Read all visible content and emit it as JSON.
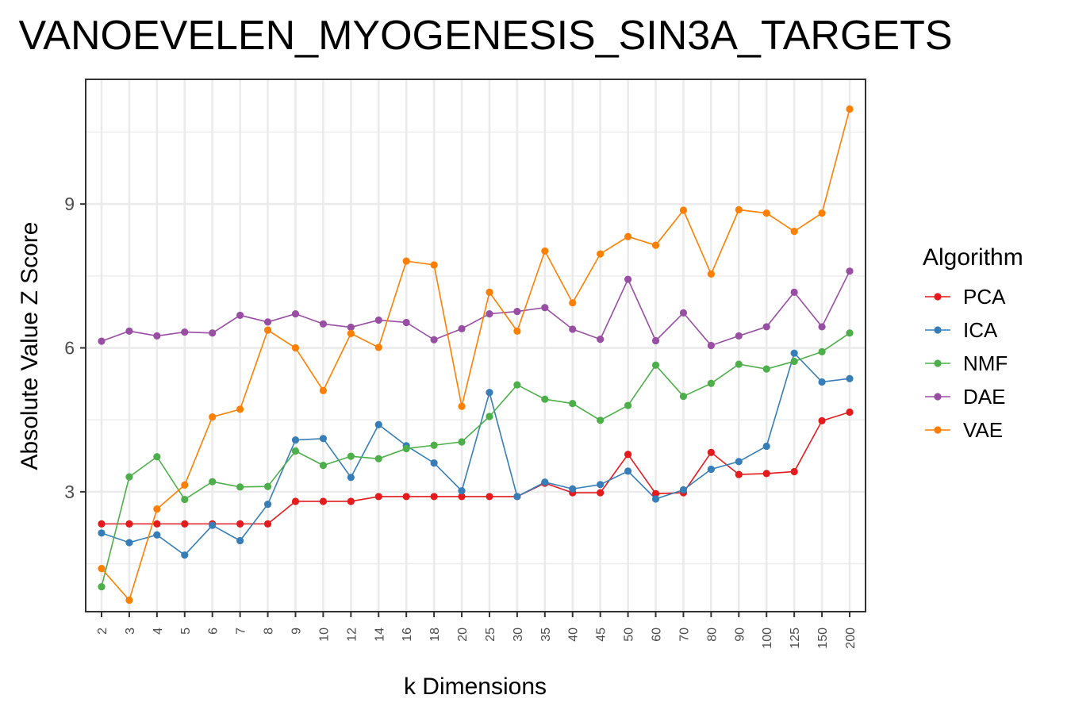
{
  "chart_data": {
    "type": "line",
    "title": "VANOEVELEN_MYOGENESIS_SIN3A_TARGETS",
    "xlabel": "k Dimensions",
    "ylabel": "Absolute Value Z Score",
    "categories": [
      "2",
      "3",
      "4",
      "5",
      "6",
      "7",
      "8",
      "9",
      "10",
      "12",
      "14",
      "16",
      "18",
      "20",
      "25",
      "30",
      "35",
      "40",
      "45",
      "50",
      "60",
      "70",
      "80",
      "90",
      "100",
      "125",
      "150",
      "200"
    ],
    "yticks": [
      3,
      6,
      9
    ],
    "ylim": [
      0.5,
      11.6
    ],
    "grid": true,
    "legend": {
      "title": "Algorithm",
      "position": "right"
    },
    "series": [
      {
        "name": "PCA",
        "color": "#e41a1c",
        "values": [
          2.33,
          2.33,
          2.33,
          2.33,
          2.33,
          2.33,
          2.33,
          2.8,
          2.8,
          2.8,
          2.9,
          2.9,
          2.9,
          2.9,
          2.9,
          2.9,
          3.18,
          2.98,
          2.98,
          3.78,
          2.96,
          2.98,
          3.82,
          3.36,
          3.38,
          3.42,
          4.48,
          4.66
        ]
      },
      {
        "name": "ICA",
        "color": "#377eb8",
        "values": [
          2.14,
          1.94,
          2.1,
          1.68,
          2.3,
          1.98,
          2.74,
          4.08,
          4.11,
          3.3,
          4.4,
          3.96,
          3.6,
          3.02,
          5.07,
          2.9,
          3.2,
          3.06,
          3.15,
          3.43,
          2.85,
          3.04,
          3.47,
          3.63,
          3.95,
          5.89,
          5.29,
          5.36
        ]
      },
      {
        "name": "NMF",
        "color": "#4daf4a",
        "values": [
          1.02,
          3.31,
          3.73,
          2.84,
          3.21,
          3.1,
          3.11,
          3.85,
          3.55,
          3.74,
          3.69,
          3.9,
          3.97,
          4.04,
          4.57,
          5.23,
          4.93,
          4.84,
          4.49,
          4.8,
          5.64,
          4.99,
          5.26,
          5.66,
          5.56,
          5.72,
          5.92,
          6.31
        ]
      },
      {
        "name": "DAE",
        "color": "#984ea3",
        "values": [
          6.14,
          6.35,
          6.25,
          6.33,
          6.31,
          6.68,
          6.54,
          6.71,
          6.5,
          6.43,
          6.58,
          6.53,
          6.17,
          6.4,
          6.71,
          6.76,
          6.84,
          6.39,
          6.18,
          7.43,
          6.15,
          6.73,
          6.05,
          6.25,
          6.44,
          7.16,
          6.44,
          7.6
        ]
      },
      {
        "name": "VAE",
        "color": "#ff7f00",
        "values": [
          1.4,
          0.74,
          2.64,
          3.14,
          4.56,
          4.72,
          6.37,
          6.0,
          5.11,
          6.3,
          6.01,
          7.81,
          7.73,
          4.78,
          7.16,
          6.35,
          8.02,
          6.94,
          7.96,
          8.32,
          8.14,
          8.87,
          7.54,
          8.88,
          8.81,
          8.43,
          8.81,
          10.98
        ]
      }
    ]
  }
}
